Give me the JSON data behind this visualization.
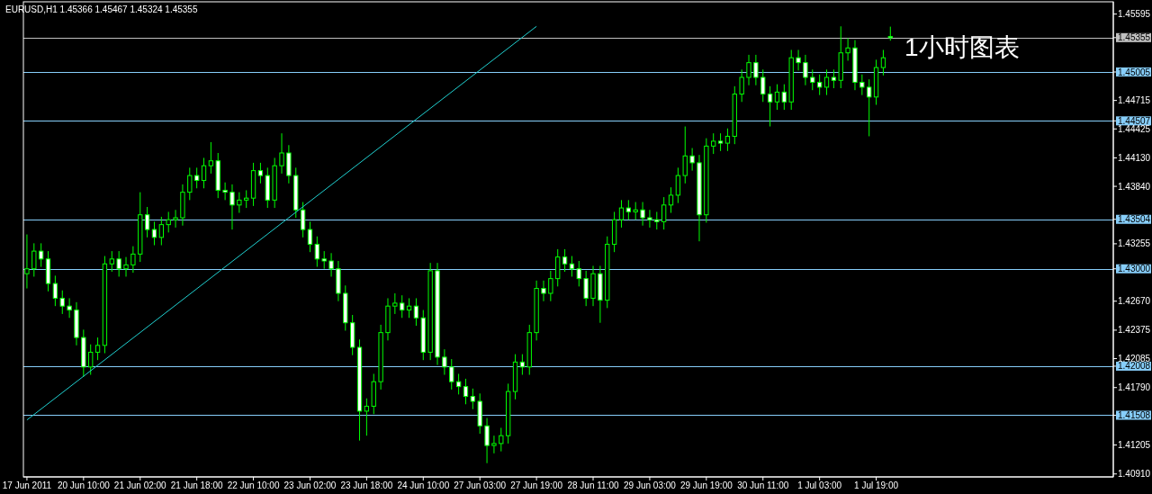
{
  "chart_data": {
    "type": "candlestick",
    "title": "EURUSD,H1  1.45366 1.45467 1.45324 1.45355",
    "annotations": [
      "1小时图表"
    ],
    "categories": [
      "17 Jun 2011",
      null,
      null,
      null,
      null,
      null,
      null,
      null,
      "20 Jun 10:00",
      null,
      null,
      null,
      null,
      null,
      null,
      null,
      "21 Jun 02:00",
      null,
      null,
      null,
      null,
      null,
      null,
      null,
      "21 Jun 18:00",
      null,
      null,
      null,
      null,
      null,
      null,
      null,
      "22 Jun 10:00",
      null,
      null,
      null,
      null,
      null,
      null,
      null,
      "23 Jun 02:00",
      null,
      null,
      null,
      null,
      null,
      null,
      null,
      "23 Jun 18:00",
      null,
      null,
      null,
      null,
      null,
      null,
      null,
      "24 Jun 10:00",
      null,
      null,
      null,
      null,
      null,
      null,
      null,
      "27 Jun 03:00",
      null,
      null,
      null,
      null,
      null,
      null,
      null,
      "27 Jun 19:00",
      null,
      null,
      null,
      null,
      null,
      null,
      null,
      "28 Jun 11:00",
      null,
      null,
      null,
      null,
      null,
      null,
      null,
      "29 Jun 03:00",
      null,
      null,
      null,
      null,
      null,
      null,
      null,
      "29 Jun 19:00",
      null,
      null,
      null,
      null,
      null,
      null,
      null,
      "30 Jun 11:00",
      null,
      null,
      null,
      null,
      null,
      null,
      null,
      "1 Jul 03:00",
      null,
      null,
      null,
      null,
      null,
      null,
      null,
      "1 Jul 19:00",
      null,
      null,
      null,
      null,
      null,
      null,
      null,
      null,
      null,
      null,
      null,
      null,
      null,
      null,
      null,
      null,
      null,
      null,
      null,
      null,
      null,
      null,
      null,
      null,
      null,
      null,
      null,
      null,
      null,
      null,
      null,
      null,
      null
    ],
    "colors": [
      "#00ff00",
      "#00ff00",
      "#00ff00",
      "#00ff00",
      "#00ff00",
      "#00ff00",
      "#00ff00",
      "#00ff00",
      "#00ff00",
      "#00ff00",
      "#00ff00",
      "#00ff00",
      "#00ff00",
      "#00ff00",
      "#00ff00",
      "#00ff00",
      "#00ff00",
      "#00ff00",
      "#00ff00",
      "#00ff00",
      "#00ff00",
      "#00ff00",
      "#00ff00",
      "#00ff00",
      "#00ff00",
      "#00ff00",
      "#00ff00",
      "#00ff00",
      "#00ff00",
      "#00ff00",
      "#00ff00",
      "#00ff00",
      "#00ff00",
      "#00ff00",
      "#00ff00",
      "#00ff00",
      "#00ff00",
      "#00ff00",
      "#00ff00",
      "#00ff00",
      "#00ff00",
      "#00ff00",
      "#00ff00",
      "#00ff00",
      "#00ff00",
      "#00ff00",
      "#00ff00",
      "#00ff00",
      "#00ff00",
      "#00ff00",
      "#00ff00",
      "#00ff00",
      "#00ff00",
      "#00ff00",
      "#00ff00",
      "#00ff00",
      "#00ff00",
      "#00ff00",
      "#00ff00",
      "#00ff00",
      "#00ff00",
      "#00ff00",
      "#00ff00",
      "#00ff00",
      "#00ff00",
      "#00ff00",
      "#00ff00",
      "#00ff00",
      "#00ff00",
      "#00ff00",
      "#00ff00",
      "#00ff00",
      "#00ff00",
      "#00ff00",
      "#00ff00",
      "#00ff00",
      "#00ff00",
      "#00ff00",
      "#00ff00",
      "#00ff00",
      "#00ff00",
      "#00ff00",
      "#00ff00",
      "#00ff00",
      "#00ff00",
      "#00ff00",
      "#00ff00",
      "#00ff00",
      "#00ff00",
      "#00ff00",
      "#00ff00",
      "#00ff00",
      "#00ff00",
      "#00ff00",
      "#00ff00",
      "#00ff00",
      "#00ff00",
      "#00ff00",
      "#00ff00",
      "#00ff00",
      "#00ff00",
      "#00ff00",
      "#00ff00",
      "#00ff00",
      "#00ff00",
      "#00ff00",
      "#00ff00",
      "#00ff00",
      "#00ff00",
      "#00ff00",
      "#00ff00",
      "#00ff00",
      "#00ff00",
      "#00ff00",
      "#00ff00",
      "#00ff00",
      "#00ff00",
      "#00ff00",
      "#00ff00",
      "#00ff00",
      "#00ff00",
      "#00ff00",
      "#00ff00",
      null,
      null,
      null,
      null,
      null,
      null,
      null,
      null,
      null,
      null,
      null,
      null,
      null,
      null,
      null,
      null,
      null,
      null,
      null,
      null,
      null,
      null,
      null,
      null,
      null,
      null,
      null,
      null,
      null,
      null,
      null
    ],
    "ohlc": [
      [
        1.4295,
        1.4335,
        1.428,
        1.43
      ],
      [
        1.43,
        1.4326,
        1.4292,
        1.4318
      ],
      [
        1.4318,
        1.4326,
        1.4302,
        1.431
      ],
      [
        1.431,
        1.4318,
        1.4277,
        1.4285
      ],
      [
        1.4285,
        1.4293,
        1.4262,
        1.427
      ],
      [
        1.427,
        1.4278,
        1.4254,
        1.4262
      ],
      [
        1.4262,
        1.427,
        1.425,
        1.4258
      ],
      [
        1.4258,
        1.4266,
        1.4222,
        1.423
      ],
      [
        1.423,
        1.4238,
        1.419,
        1.42
      ],
      [
        1.42,
        1.4223,
        1.4192,
        1.4215
      ],
      [
        1.4215,
        1.423,
        1.4207,
        1.4222
      ],
      [
        1.4222,
        1.4313,
        1.4214,
        1.4305
      ],
      [
        1.4305,
        1.4318,
        1.4297,
        1.431
      ],
      [
        1.431,
        1.4318,
        1.4292,
        1.43
      ],
      [
        1.43,
        1.4312,
        1.4292,
        1.4304
      ],
      [
        1.4304,
        1.4323,
        1.4296,
        1.4315
      ],
      [
        1.4315,
        1.4378,
        1.4307,
        1.4355
      ],
      [
        1.4355,
        1.4363,
        1.4332,
        1.434
      ],
      [
        1.434,
        1.4348,
        1.4324,
        1.4332
      ],
      [
        1.4332,
        1.4353,
        1.4324,
        1.4345
      ],
      [
        1.4345,
        1.4358,
        1.4337,
        1.435
      ],
      [
        1.435,
        1.436,
        1.4342,
        1.4352
      ],
      [
        1.4352,
        1.4386,
        1.4344,
        1.4378
      ],
      [
        1.4378,
        1.4403,
        1.437,
        1.4395
      ],
      [
        1.4395,
        1.4403,
        1.4382,
        1.439
      ],
      [
        1.439,
        1.4413,
        1.4382,
        1.4405
      ],
      [
        1.4405,
        1.4429,
        1.4397,
        1.441
      ],
      [
        1.441,
        1.4418,
        1.4372,
        1.438
      ],
      [
        1.438,
        1.4388,
        1.437,
        1.4378
      ],
      [
        1.4378,
        1.4386,
        1.434,
        1.4365
      ],
      [
        1.4365,
        1.4378,
        1.4357,
        1.437
      ],
      [
        1.437,
        1.438,
        1.4362,
        1.4372
      ],
      [
        1.4372,
        1.4408,
        1.4364,
        1.44
      ],
      [
        1.44,
        1.4408,
        1.4387,
        1.4395
      ],
      [
        1.4395,
        1.4403,
        1.4362,
        1.437
      ],
      [
        1.437,
        1.4413,
        1.4362,
        1.4405
      ],
      [
        1.4405,
        1.4438,
        1.4397,
        1.4418
      ],
      [
        1.4418,
        1.4426,
        1.4387,
        1.4395
      ],
      [
        1.4395,
        1.4403,
        1.4352,
        1.436
      ],
      [
        1.436,
        1.4368,
        1.4332,
        1.434
      ],
      [
        1.434,
        1.4348,
        1.4317,
        1.4325
      ],
      [
        1.4325,
        1.4333,
        1.4302,
        1.431
      ],
      [
        1.431,
        1.4318,
        1.43,
        1.4308
      ],
      [
        1.4308,
        1.4316,
        1.4292,
        1.43
      ],
      [
        1.43,
        1.4308,
        1.4267,
        1.4275
      ],
      [
        1.4275,
        1.4283,
        1.4237,
        1.4245
      ],
      [
        1.4245,
        1.4253,
        1.4212,
        1.422
      ],
      [
        1.422,
        1.4228,
        1.4125,
        1.4155
      ],
      [
        1.4155,
        1.4168,
        1.413,
        1.416
      ],
      [
        1.416,
        1.4193,
        1.4152,
        1.4185
      ],
      [
        1.4185,
        1.4243,
        1.4177,
        1.4235
      ],
      [
        1.4235,
        1.427,
        1.4227,
        1.4262
      ],
      [
        1.4262,
        1.4275,
        1.4254,
        1.4265
      ],
      [
        1.4265,
        1.4273,
        1.425,
        1.4258
      ],
      [
        1.4258,
        1.427,
        1.425,
        1.4262
      ],
      [
        1.4262,
        1.427,
        1.4242,
        1.425
      ],
      [
        1.425,
        1.4258,
        1.4207,
        1.4215
      ],
      [
        1.4215,
        1.4306,
        1.4207,
        1.4298
      ],
      [
        1.4298,
        1.4306,
        1.4202,
        1.421
      ],
      [
        1.421,
        1.4218,
        1.4192,
        1.42
      ],
      [
        1.42,
        1.4208,
        1.4177,
        1.4185
      ],
      [
        1.4185,
        1.4193,
        1.4172,
        1.418
      ],
      [
        1.418,
        1.4188,
        1.4162,
        1.417
      ],
      [
        1.417,
        1.4178,
        1.4157,
        1.4165
      ],
      [
        1.4165,
        1.4173,
        1.4132,
        1.414
      ],
      [
        1.414,
        1.4148,
        1.4102,
        1.412
      ],
      [
        1.412,
        1.413,
        1.4112,
        1.4122
      ],
      [
        1.4122,
        1.4138,
        1.4114,
        1.413
      ],
      [
        1.413,
        1.4183,
        1.4122,
        1.4175
      ],
      [
        1.4175,
        1.4213,
        1.4167,
        1.4205
      ],
      [
        1.4205,
        1.4213,
        1.4192,
        1.42
      ],
      [
        1.42,
        1.4243,
        1.4192,
        1.4235
      ],
      [
        1.4235,
        1.4288,
        1.4227,
        1.428
      ],
      [
        1.428,
        1.4288,
        1.4267,
        1.4275
      ],
      [
        1.4275,
        1.4298,
        1.4267,
        1.429
      ],
      [
        1.429,
        1.432,
        1.4282,
        1.4312
      ],
      [
        1.4312,
        1.432,
        1.4297,
        1.4305
      ],
      [
        1.4305,
        1.4313,
        1.4292,
        1.43
      ],
      [
        1.43,
        1.4308,
        1.4282,
        1.429
      ],
      [
        1.429,
        1.4298,
        1.4262,
        1.427
      ],
      [
        1.427,
        1.4303,
        1.4262,
        1.4295
      ],
      [
        1.4295,
        1.4303,
        1.4245,
        1.4268
      ],
      [
        1.4268,
        1.4333,
        1.426,
        1.4325
      ],
      [
        1.4325,
        1.4358,
        1.4317,
        1.435
      ],
      [
        1.435,
        1.437,
        1.4342,
        1.4362
      ],
      [
        1.4362,
        1.437,
        1.435,
        1.4358
      ],
      [
        1.4358,
        1.4368,
        1.435,
        1.436
      ],
      [
        1.436,
        1.4368,
        1.4344,
        1.4352
      ],
      [
        1.4352,
        1.436,
        1.4342,
        1.435
      ],
      [
        1.435,
        1.4358,
        1.434,
        1.4348
      ],
      [
        1.4348,
        1.4373,
        1.434,
        1.4365
      ],
      [
        1.4365,
        1.4383,
        1.4357,
        1.4375
      ],
      [
        1.4375,
        1.4403,
        1.4367,
        1.4395
      ],
      [
        1.4395,
        1.4445,
        1.4387,
        1.4415
      ],
      [
        1.4415,
        1.4423,
        1.44,
        1.4408
      ],
      [
        1.4408,
        1.4416,
        1.4328,
        1.4355
      ],
      [
        1.4355,
        1.4433,
        1.4347,
        1.4425
      ],
      [
        1.4425,
        1.4438,
        1.4417,
        1.443
      ],
      [
        1.443,
        1.4438,
        1.442,
        1.4428
      ],
      [
        1.4428,
        1.4443,
        1.442,
        1.4435
      ],
      [
        1.4435,
        1.4486,
        1.4427,
        1.4478
      ],
      [
        1.4478,
        1.4503,
        1.447,
        1.4495
      ],
      [
        1.4495,
        1.4518,
        1.4487,
        1.451
      ],
      [
        1.451,
        1.4518,
        1.4487,
        1.4495
      ],
      [
        1.4495,
        1.4503,
        1.447,
        1.4478
      ],
      [
        1.4478,
        1.4486,
        1.4445,
        1.447
      ],
      [
        1.447,
        1.4488,
        1.4462,
        1.448
      ],
      [
        1.448,
        1.4488,
        1.4462,
        1.447
      ],
      [
        1.447,
        1.4523,
        1.4462,
        1.4515
      ],
      [
        1.4515,
        1.4523,
        1.4502,
        1.451
      ],
      [
        1.451,
        1.4518,
        1.4487,
        1.4495
      ],
      [
        1.4495,
        1.4503,
        1.4482,
        1.449
      ],
      [
        1.449,
        1.4498,
        1.4477,
        1.4485
      ],
      [
        1.4485,
        1.4503,
        1.4477,
        1.4495
      ],
      [
        1.4495,
        1.4503,
        1.4484,
        1.4492
      ],
      [
        1.4492,
        1.4547,
        1.4484,
        1.452
      ],
      [
        1.452,
        1.4535,
        1.4512,
        1.4525
      ],
      [
        1.4525,
        1.4533,
        1.4482,
        1.449
      ],
      [
        1.449,
        1.4498,
        1.4477,
        1.4485
      ],
      [
        1.4485,
        1.4493,
        1.4435,
        1.4475
      ],
      [
        1.4475,
        1.4513,
        1.4467,
        1.4505
      ],
      [
        1.4505,
        1.4523,
        1.4497,
        1.4515
      ],
      [
        1.45366,
        1.45467,
        1.45324,
        1.45355
      ],
      null,
      null,
      null,
      null,
      null,
      null,
      null,
      null,
      null,
      null,
      null,
      null,
      null,
      null,
      null,
      null,
      null,
      null,
      null,
      null,
      null,
      null,
      null,
      null,
      null,
      null,
      null,
      null,
      null,
      null,
      null
    ],
    "series": [
      {
        "type": "line",
        "color": "#20d0d0",
        "x": [
          "17 Jun 2011",
          "27 Jun 19:00"
        ],
        "values": [
          1.4146,
          1.4547
        ]
      }
    ],
    "ylim": [
      1.4088,
      1.4572
    ],
    "yticks": [
      {
        "value": 1.45595,
        "label": "1.45595"
      },
      {
        "value": 1.45355,
        "label": "1.45355"
      },
      {
        "value": 1.45005,
        "label": "1.45005"
      },
      {
        "value": 1.44715,
        "label": "1.44715"
      },
      {
        "value": 1.44507,
        "label": "1.44507"
      },
      {
        "value": 1.44425,
        "label": "1.44425"
      },
      {
        "value": 1.4413,
        "label": "1.44130"
      },
      {
        "value": 1.4384,
        "label": "1.43840"
      },
      {
        "value": 1.43504,
        "label": "1.43504"
      },
      {
        "value": 1.43255,
        "label": "1.43255"
      },
      {
        "value": 1.43,
        "label": "1.43000"
      },
      {
        "value": 1.4267,
        "label": "1.42670"
      },
      {
        "value": 1.42375,
        "label": "1.42375"
      },
      {
        "value": 1.42085,
        "label": "1.42085"
      },
      {
        "value": 1.42008,
        "label": "1.42008"
      },
      {
        "value": 1.4179,
        "label": "1.41790"
      },
      {
        "value": 1.41508,
        "label": "1.41508"
      },
      {
        "value": 1.41205,
        "label": "1.41205"
      },
      {
        "value": 1.4091,
        "label": "1.40910"
      }
    ],
    "ref_lines": [
      {
        "axis": "y",
        "value": 1.45355,
        "color": "#c0c0c0"
      },
      {
        "axis": "y",
        "value": 1.45005,
        "color": "#87cefa"
      },
      {
        "axis": "y",
        "value": 1.44507,
        "color": "#87cefa"
      },
      {
        "axis": "y",
        "value": 1.43504,
        "color": "#87cefa"
      },
      {
        "axis": "y",
        "value": 1.43,
        "color": "#87cefa"
      },
      {
        "axis": "y",
        "value": 1.42008,
        "color": "#87cefa"
      },
      {
        "axis": "y",
        "value": 1.41508,
        "color": "#87cefa"
      }
    ]
  }
}
